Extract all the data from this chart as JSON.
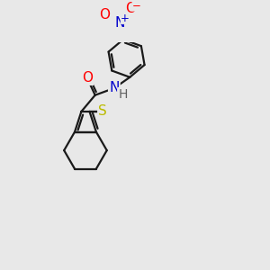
{
  "bg_color": "#e8e8e8",
  "bond_color": "#1a1a1a",
  "bond_lw": 1.6,
  "atom_colors": {
    "O": "#ff0000",
    "N": "#0000cc",
    "S": "#bbbb00",
    "H": "#606060",
    "C": "#1a1a1a"
  },
  "font_size": 10,
  "fig_size": [
    3.0,
    3.0
  ],
  "dpi": 100
}
